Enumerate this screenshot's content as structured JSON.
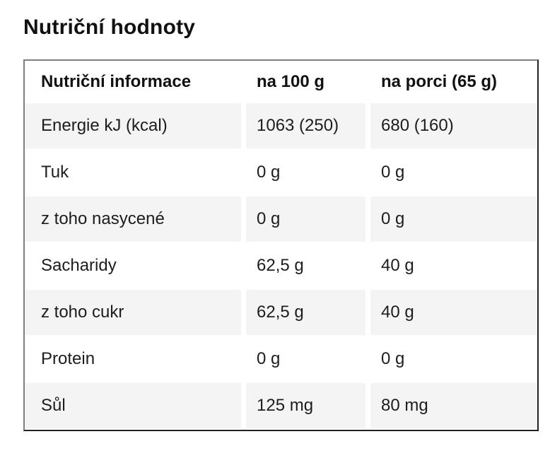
{
  "theme": {
    "stripe": "#f4f4f4",
    "border-light": "#7e7e7e",
    "border-dark": "#212121",
    "text": "#1d1d1d"
  },
  "page": {
    "title": "Nutriční hodnoty"
  },
  "table": {
    "headers": [
      "Nutriční informace",
      "na 100 g",
      "na porci (65 g)"
    ],
    "rows": [
      {
        "label": "Energie kJ (kcal)",
        "per_100g": "1063 (250)",
        "per_portion": "680 (160)"
      },
      {
        "label": "Tuk",
        "per_100g": "0 g",
        "per_portion": "0 g"
      },
      {
        "label": "z toho nasycené",
        "per_100g": "0 g",
        "per_portion": "0 g"
      },
      {
        "label": "Sacharidy",
        "per_100g": "62,5 g",
        "per_portion": "40 g"
      },
      {
        "label": "z toho cukr",
        "per_100g": "62,5 g",
        "per_portion": "40 g"
      },
      {
        "label": "Protein",
        "per_100g": "0 g",
        "per_portion": "0 g"
      },
      {
        "label": "Sůl",
        "per_100g": "125 mg",
        "per_portion": "80 mg"
      }
    ]
  }
}
